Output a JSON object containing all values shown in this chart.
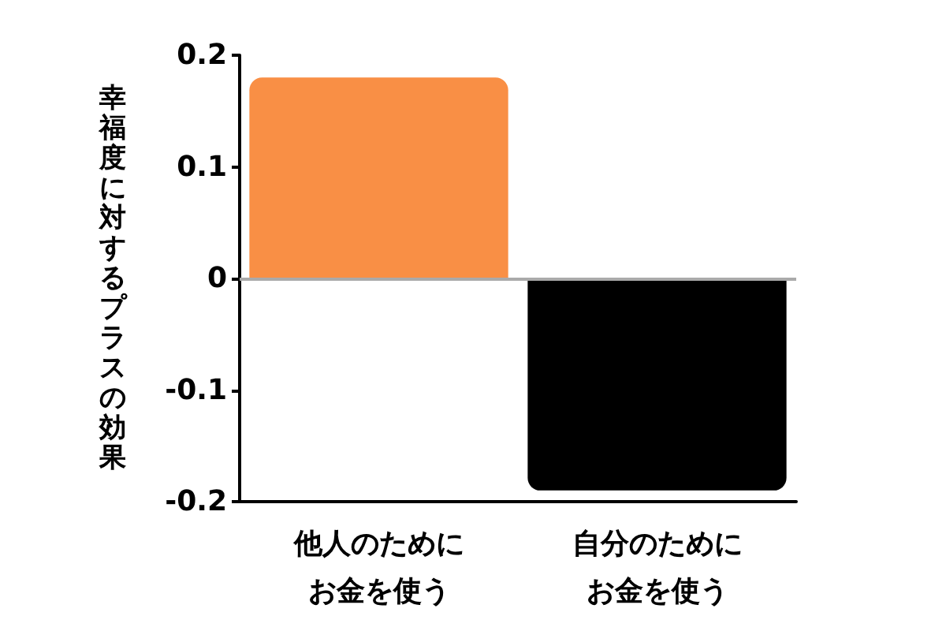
{
  "chart_data": {
    "type": "bar",
    "ylabel": "幸福度に対するプラスの効果",
    "categories": [
      "他人のためにお金を使う",
      "自分のためにお金を使う"
    ],
    "values": [
      0.18,
      -0.19
    ],
    "colors": [
      "#f98f45",
      "#000000"
    ],
    "ylim": [
      -0.2,
      0.2
    ],
    "yticks": [
      -0.2,
      -0.1,
      0,
      0.1,
      0.2
    ],
    "ref_lines": [
      {
        "axis": "y",
        "value": 0,
        "color": "#aaaaaa"
      }
    ],
    "grid": false
  }
}
